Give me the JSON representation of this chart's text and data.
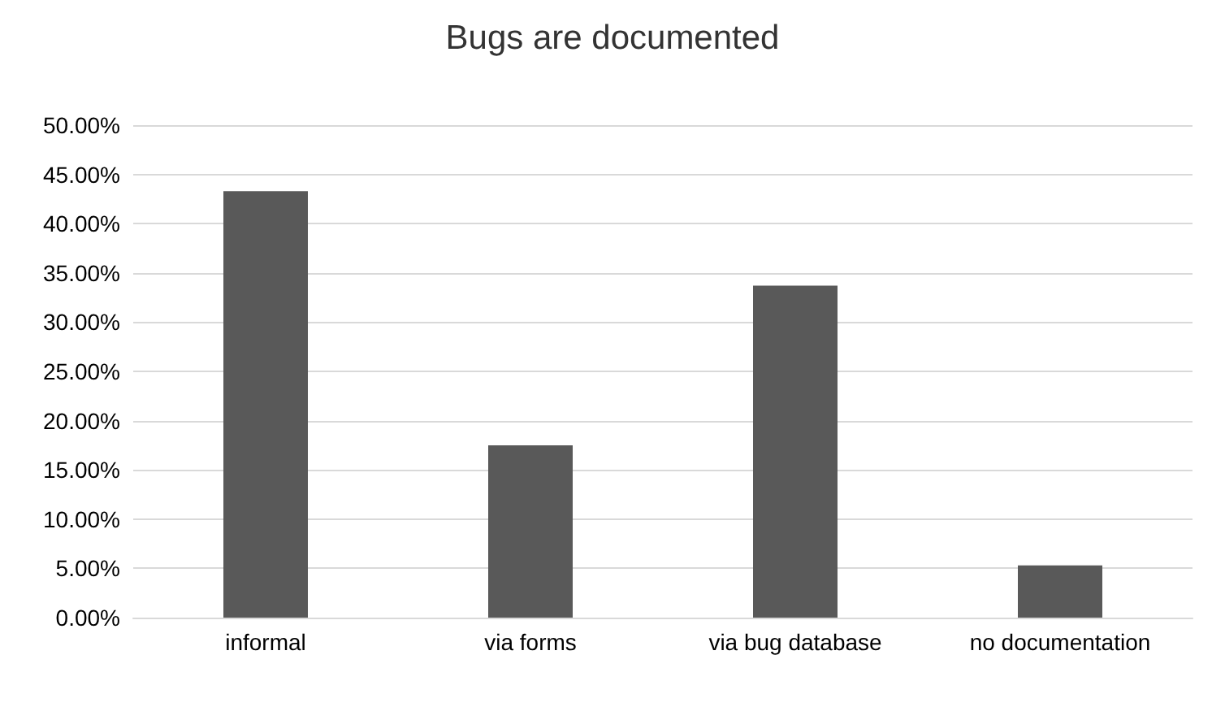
{
  "chart_data": {
    "type": "bar",
    "title": "Bugs are documented",
    "categories": [
      "informal",
      "via forms",
      "via bug database",
      "no documentation"
    ],
    "values": [
      43.3,
      17.5,
      33.7,
      5.3
    ],
    "color": "#595959",
    "ylim": [
      0,
      50
    ],
    "yticks": [
      {
        "value": 0,
        "label": "0.00%"
      },
      {
        "value": 5,
        "label": "5.00%"
      },
      {
        "value": 10,
        "label": "10.00%"
      },
      {
        "value": 15,
        "label": "15.00%"
      },
      {
        "value": 20,
        "label": "20.00%"
      },
      {
        "value": 25,
        "label": "25.00%"
      },
      {
        "value": 30,
        "label": "30.00%"
      },
      {
        "value": 35,
        "label": "35.00%"
      },
      {
        "value": 40,
        "label": "40.00%"
      },
      {
        "value": 45,
        "label": "45.00%"
      },
      {
        "value": 50,
        "label": "50.00%"
      }
    ],
    "grid": "y"
  }
}
